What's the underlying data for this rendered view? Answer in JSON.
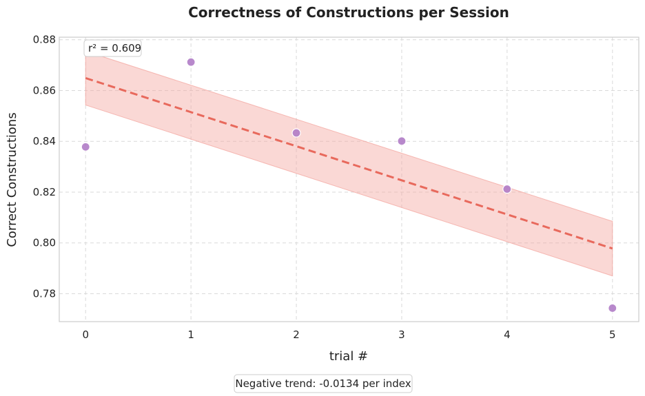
{
  "chart_data": {
    "type": "scatter",
    "title": "Correctness of Constructions per Session",
    "xlabel": "trial #",
    "ylabel": "Correct Constructions",
    "x": [
      0,
      1,
      2,
      3,
      4,
      5
    ],
    "y": [
      0.8378,
      0.8712,
      0.8433,
      0.8401,
      0.8212,
      0.7743
    ],
    "x_ticks": [
      0,
      1,
      2,
      3,
      4,
      5
    ],
    "x_tick_labels": [
      "0",
      "1",
      "2",
      "3",
      "4",
      "5"
    ],
    "y_ticks": [
      0.78,
      0.8,
      0.82,
      0.84,
      0.86,
      0.88
    ],
    "y_tick_labels": [
      "0.78",
      "0.80",
      "0.82",
      "0.84",
      "0.86",
      "0.88"
    ],
    "xlim": [
      -0.25,
      5.25
    ],
    "ylim": [
      0.769,
      0.881
    ],
    "grid": true,
    "trendline": {
      "style": "dashed",
      "start": [
        0,
        0.8649
      ],
      "end": [
        5,
        0.7978
      ],
      "band_upper": [
        [
          0,
          0.8755
        ],
        [
          5,
          0.8085
        ]
      ],
      "band_lower": [
        [
          0,
          0.8543
        ],
        [
          5,
          0.787
        ]
      ]
    },
    "annotations": {
      "r_squared": "r² = 0.609",
      "trend_note": "Negative trend: -0.0134 per index"
    },
    "colors": {
      "points": "#b07cc6",
      "trendline": "#e8695c",
      "band": "#f4a9a2",
      "grid": "#d9d9d9",
      "axes": "#cccccc"
    }
  }
}
